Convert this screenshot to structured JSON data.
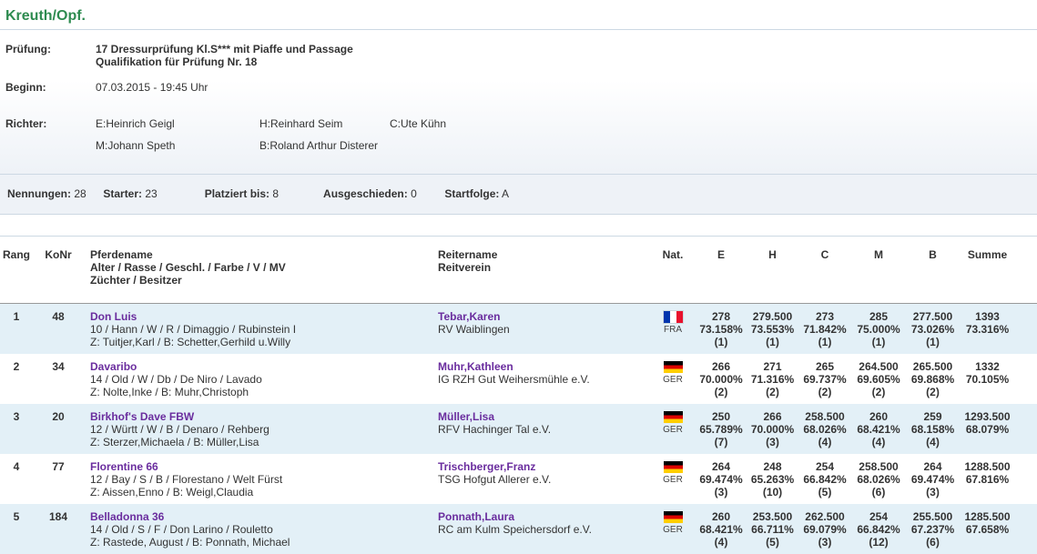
{
  "colors": {
    "title_green": "#2e8b50",
    "link_purple": "#6a2d9e",
    "row_alt_blue": "#e3f0f7",
    "band_gray_blue": "#eef2f7",
    "border_light": "#ccd8e3"
  },
  "page": {
    "title": "Kreuth/Opf."
  },
  "info": {
    "pruefung_label": "Prüfung:",
    "pruefung_line1": "17 Dressurprüfung Kl.S*** mit Piaffe und Passage",
    "pruefung_line2": "Qualifikation für Prüfung Nr. 18",
    "beginn_label": "Beginn:",
    "beginn_value": "07.03.2015 - 19:45 Uhr",
    "richter_label": "Richter:",
    "judges_row1": [
      "E:Heinrich Geigl",
      "H:Reinhard Seim",
      "C:Ute Kühn"
    ],
    "judges_row2": [
      "M:Johann Speth",
      "B:Roland Arthur Disterer"
    ]
  },
  "stats": [
    {
      "label": "Nennungen:",
      "value": "28"
    },
    {
      "label": "Starter:",
      "value": "23"
    },
    {
      "label": "Platziert bis:",
      "value": "8"
    },
    {
      "label": "Ausgeschieden:",
      "value": "0"
    },
    {
      "label": "Startfolge:",
      "value": "A"
    }
  ],
  "table": {
    "headers": {
      "rang": "Rang",
      "konr": "KoNr",
      "pferd_line1": "Pferdename",
      "pferd_line2": "Alter / Rasse / Geschl. / Farbe / V / MV",
      "pferd_line3": "Züchter / Besitzer",
      "reiter_line1": "Reitername",
      "reiter_line2": "Reitverein",
      "nat": "Nat.",
      "e": "E",
      "h": "H",
      "c": "C",
      "m": "M",
      "b": "B",
      "summe": "Summe"
    },
    "rows": [
      {
        "rang": "1",
        "konr": "48",
        "horse": {
          "name": "Don Luis",
          "details": "10 / Hann / W / R / Dimaggio / Rubinstein I",
          "breeding": "Z: Tuitjer,Karl / B: Schetter,Gerhild u.Willy"
        },
        "rider": {
          "name": "Tebar,Karen",
          "club": "RV Waiblingen"
        },
        "nat": {
          "code": "FRA",
          "flag": "fra"
        },
        "scores": {
          "e": [
            "278",
            "73.158%",
            "(1)"
          ],
          "h": [
            "279.500",
            "73.553%",
            "(1)"
          ],
          "c": [
            "273",
            "71.842%",
            "(1)"
          ],
          "m": [
            "285",
            "75.000%",
            "(1)"
          ],
          "b": [
            "277.500",
            "73.026%",
            "(1)"
          ],
          "summe": [
            "1393",
            "73.316%"
          ]
        }
      },
      {
        "rang": "2",
        "konr": "34",
        "horse": {
          "name": "Davaribo",
          "details": "14 / Old / W / Db / De Niro / Lavado",
          "breeding": "Z: Nolte,Inke / B: Muhr,Christoph"
        },
        "rider": {
          "name": "Muhr,Kathleen",
          "club": "IG RZH Gut Weihersmühle e.V."
        },
        "nat": {
          "code": "GER",
          "flag": "ger"
        },
        "scores": {
          "e": [
            "266",
            "70.000%",
            "(2)"
          ],
          "h": [
            "271",
            "71.316%",
            "(2)"
          ],
          "c": [
            "265",
            "69.737%",
            "(2)"
          ],
          "m": [
            "264.500",
            "69.605%",
            "(2)"
          ],
          "b": [
            "265.500",
            "69.868%",
            "(2)"
          ],
          "summe": [
            "1332",
            "70.105%"
          ]
        }
      },
      {
        "rang": "3",
        "konr": "20",
        "horse": {
          "name": "Birkhof's Dave FBW",
          "details": "12 / Württ / W / B / Denaro / Rehberg",
          "breeding": "Z: Sterzer,Michaela / B: Müller,Lisa"
        },
        "rider": {
          "name": "Müller,Lisa",
          "club": "RFV Hachinger Tal e.V."
        },
        "nat": {
          "code": "GER",
          "flag": "ger"
        },
        "scores": {
          "e": [
            "250",
            "65.789%",
            "(7)"
          ],
          "h": [
            "266",
            "70.000%",
            "(3)"
          ],
          "c": [
            "258.500",
            "68.026%",
            "(4)"
          ],
          "m": [
            "260",
            "68.421%",
            "(4)"
          ],
          "b": [
            "259",
            "68.158%",
            "(4)"
          ],
          "summe": [
            "1293.500",
            "68.079%"
          ]
        }
      },
      {
        "rang": "4",
        "konr": "77",
        "horse": {
          "name": "Florentine 66",
          "details": "12 / Bay / S / B / Florestano / Welt Fürst",
          "breeding": "Z: Aissen,Enno / B: Weigl,Claudia"
        },
        "rider": {
          "name": "Trischberger,Franz",
          "club": "TSG Hofgut Allerer e.V."
        },
        "nat": {
          "code": "GER",
          "flag": "ger"
        },
        "scores": {
          "e": [
            "264",
            "69.474%",
            "(3)"
          ],
          "h": [
            "248",
            "65.263%",
            "(10)"
          ],
          "c": [
            "254",
            "66.842%",
            "(5)"
          ],
          "m": [
            "258.500",
            "68.026%",
            "(6)"
          ],
          "b": [
            "264",
            "69.474%",
            "(3)"
          ],
          "summe": [
            "1288.500",
            "67.816%"
          ]
        }
      },
      {
        "rang": "5",
        "konr": "184",
        "horse": {
          "name": "Belladonna 36",
          "details": "14 / Old / S / F / Don Larino / Rouletto",
          "breeding": "Z: Rastede, August / B: Ponnath, Michael"
        },
        "rider": {
          "name": "Ponnath,Laura",
          "club": "RC am Kulm Speichersdorf e.V."
        },
        "nat": {
          "code": "GER",
          "flag": "ger"
        },
        "scores": {
          "e": [
            "260",
            "68.421%",
            "(4)"
          ],
          "h": [
            "253.500",
            "66.711%",
            "(5)"
          ],
          "c": [
            "262.500",
            "69.079%",
            "(3)"
          ],
          "m": [
            "254",
            "66.842%",
            "(12)"
          ],
          "b": [
            "255.500",
            "67.237%",
            "(6)"
          ],
          "summe": [
            "1285.500",
            "67.658%"
          ]
        }
      }
    ]
  }
}
